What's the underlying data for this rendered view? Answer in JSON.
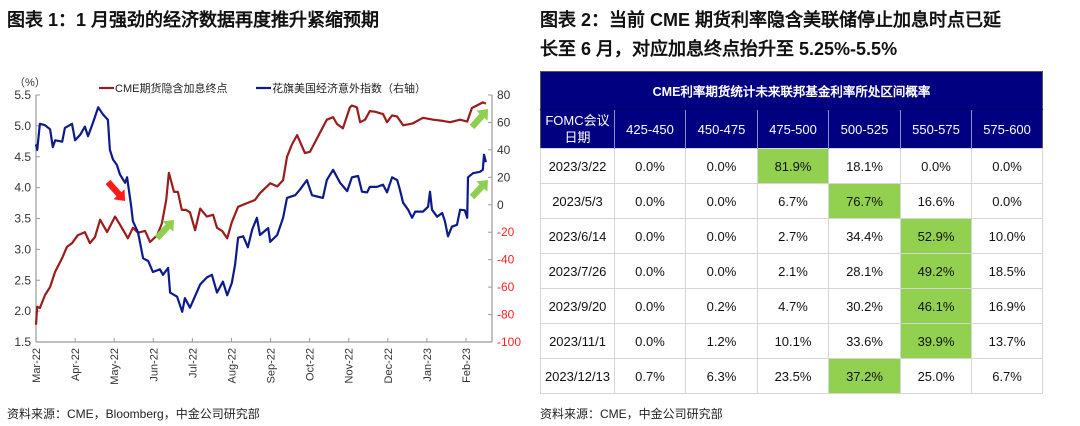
{
  "left_panel": {
    "title": "图表 1：1 月强劲的经济数据再度推升紧缩预期",
    "source": "资料来源：CME，Bloomberg，中金公司研究部"
  },
  "right_panel": {
    "title_line1": "图表 2：当前 CME 期货利率隐含美联储停止加息时点已延",
    "title_line2": "长至 6 月，对应加息终点抬升至 5.25%-5.5%",
    "source": "资料来源：CME，中金公司研究部",
    "table": {
      "title": "CME利率期货统计未来联邦基金利率所处区间概率",
      "header_first": [
        "FOMC会议",
        "日期"
      ],
      "columns": [
        "425-450",
        "450-475",
        "475-500",
        "500-525",
        "550-575",
        "575-600"
      ],
      "rows": [
        {
          "date": "2023/3/22",
          "values": [
            "0.0%",
            "0.0%",
            "81.9%",
            "18.1%",
            "0.0%",
            "0.0%"
          ],
          "highlight": 2
        },
        {
          "date": "2023/5/3",
          "values": [
            "0.0%",
            "0.0%",
            "6.7%",
            "76.7%",
            "16.6%",
            "0.0%"
          ],
          "highlight": 3
        },
        {
          "date": "2023/6/14",
          "values": [
            "0.0%",
            "0.0%",
            "2.7%",
            "34.4%",
            "52.9%",
            "10.0%"
          ],
          "highlight": 4
        },
        {
          "date": "2023/7/26",
          "values": [
            "0.0%",
            "0.0%",
            "2.1%",
            "28.1%",
            "49.2%",
            "18.5%"
          ],
          "highlight": 4
        },
        {
          "date": "2023/9/20",
          "values": [
            "0.0%",
            "0.2%",
            "4.7%",
            "30.2%",
            "46.1%",
            "16.9%"
          ],
          "highlight": 4
        },
        {
          "date": "2023/11/1",
          "values": [
            "0.0%",
            "1.2%",
            "10.1%",
            "33.6%",
            "39.9%",
            "13.7%"
          ],
          "highlight": 4
        },
        {
          "date": "2023/12/13",
          "values": [
            "0.7%",
            "6.3%",
            "23.5%",
            "37.2%",
            "25.0%",
            "6.7%"
          ],
          "highlight": 3
        }
      ]
    }
  },
  "colors": {
    "cme_line": "#9b1c1c",
    "citi_line": "#0c1a8a",
    "axis": "#9a9a9a",
    "tick_label": "#333333",
    "negative_tick_label": "#ff2222",
    "arrow_down": "#ff1a1a",
    "arrow_up": "#8dd04f",
    "table_header": "#000080",
    "highlight": "#92d050"
  },
  "chart_data": {
    "type": "line",
    "title": "图表 1：1 月强劲的经济数据再度推升紧缩预期",
    "ylabel": "（%）",
    "xlabel": "",
    "x_ticks": [
      "Mar-22",
      "Apr-22",
      "May-22",
      "Jun-22",
      "Jul-22",
      "Aug-22",
      "Sep-22",
      "Oct-22",
      "Nov-22",
      "Dec-22",
      "Jan-23",
      "Feb-23"
    ],
    "xlim": [
      0,
      11.67
    ],
    "ylim": [
      1.5,
      5.5
    ],
    "y_ticks": [
      "1.5",
      "2.0",
      "2.5",
      "3.0",
      "3.5",
      "4.0",
      "4.5",
      "5.0",
      "5.5"
    ],
    "y2lim": [
      -100,
      80
    ],
    "y2_ticks": [
      "-100",
      "-80",
      "-60",
      "-40",
      "-20",
      "0",
      "20",
      "40",
      "60",
      "80"
    ],
    "legend_position": "top",
    "grid": false,
    "series": [
      {
        "name": "CME期货隐含加息终点",
        "axis": "left",
        "points": [
          [
            0,
            1.78
          ],
          [
            0.03,
            2.07
          ],
          [
            0.1,
            2.05
          ],
          [
            0.23,
            2.26
          ],
          [
            0.36,
            2.39
          ],
          [
            0.49,
            2.64
          ],
          [
            0.67,
            2.86
          ],
          [
            0.79,
            3.04
          ],
          [
            0.92,
            3.1
          ],
          [
            1.07,
            3.23
          ],
          [
            1.25,
            3.28
          ],
          [
            1.38,
            3.1
          ],
          [
            1.51,
            3.2
          ],
          [
            1.64,
            3.48
          ],
          [
            1.82,
            3.28
          ],
          [
            2.02,
            3.53
          ],
          [
            2.15,
            3.4
          ],
          [
            2.35,
            3.18
          ],
          [
            2.48,
            3.35
          ],
          [
            2.61,
            3.27
          ],
          [
            2.79,
            3.3
          ],
          [
            2.92,
            3.12
          ],
          [
            3.1,
            3.23
          ],
          [
            3.22,
            3.42
          ],
          [
            3.33,
            3.8
          ],
          [
            3.4,
            4.24
          ],
          [
            3.53,
            3.93
          ],
          [
            3.63,
            3.93
          ],
          [
            3.73,
            3.64
          ],
          [
            3.84,
            3.64
          ],
          [
            3.94,
            3.6
          ],
          [
            4.07,
            3.31
          ],
          [
            4.2,
            3.66
          ],
          [
            4.37,
            3.53
          ],
          [
            4.53,
            3.56
          ],
          [
            4.63,
            3.35
          ],
          [
            4.76,
            3.3
          ],
          [
            4.89,
            3.18
          ],
          [
            5.01,
            3.44
          ],
          [
            5.17,
            3.69
          ],
          [
            5.4,
            3.75
          ],
          [
            5.6,
            3.8
          ],
          [
            5.73,
            3.91
          ],
          [
            5.99,
            4.07
          ],
          [
            6.17,
            4.02
          ],
          [
            6.32,
            4.12
          ],
          [
            6.42,
            4.5
          ],
          [
            6.55,
            4.7
          ],
          [
            6.68,
            4.85
          ],
          [
            6.88,
            4.56
          ],
          [
            7.01,
            4.58
          ],
          [
            7.19,
            4.8
          ],
          [
            7.44,
            5.1
          ],
          [
            7.6,
            5.14
          ],
          [
            7.7,
            5.03
          ],
          [
            7.85,
            4.96
          ],
          [
            8.03,
            5.3
          ],
          [
            8.08,
            5.33
          ],
          [
            8.21,
            5.3
          ],
          [
            8.29,
            5.06
          ],
          [
            8.42,
            5.1
          ],
          [
            8.54,
            5.24
          ],
          [
            8.67,
            5.23
          ],
          [
            8.88,
            5.19
          ],
          [
            8.98,
            5.06
          ],
          [
            9.11,
            5.17
          ],
          [
            9.24,
            5.15
          ],
          [
            9.39,
            5.01
          ],
          [
            9.64,
            5.04
          ],
          [
            9.9,
            5.13
          ],
          [
            10.16,
            5.1
          ],
          [
            10.41,
            5.08
          ],
          [
            10.59,
            5.06
          ],
          [
            10.85,
            5.1
          ],
          [
            11.03,
            5.07
          ],
          [
            11.15,
            5.29
          ],
          [
            11.31,
            5.34
          ],
          [
            11.43,
            5.38
          ],
          [
            11.51,
            5.36
          ]
        ]
      },
      {
        "name": "花旗美国经济意外指数（右轴）",
        "axis": "right",
        "points": [
          [
            0,
            44
          ],
          [
            0.03,
            40
          ],
          [
            0.1,
            59
          ],
          [
            0.23,
            58
          ],
          [
            0.36,
            55
          ],
          [
            0.43,
            42
          ],
          [
            0.49,
            47
          ],
          [
            0.67,
            46
          ],
          [
            0.74,
            56
          ],
          [
            0.92,
            59
          ],
          [
            1.0,
            47
          ],
          [
            1.13,
            51
          ],
          [
            1.25,
            57
          ],
          [
            1.33,
            50
          ],
          [
            1.46,
            60
          ],
          [
            1.59,
            71
          ],
          [
            1.71,
            66
          ],
          [
            1.84,
            62
          ],
          [
            1.89,
            40
          ],
          [
            1.97,
            33
          ],
          [
            2.07,
            29
          ],
          [
            2.15,
            22
          ],
          [
            2.28,
            16
          ],
          [
            2.33,
            20
          ],
          [
            2.4,
            6
          ],
          [
            2.43,
            0
          ],
          [
            2.48,
            -12
          ],
          [
            2.61,
            -20
          ],
          [
            2.74,
            -39
          ],
          [
            2.87,
            -41
          ],
          [
            2.99,
            -49
          ],
          [
            3.17,
            -47
          ],
          [
            3.25,
            -51
          ],
          [
            3.38,
            -46
          ],
          [
            3.43,
            -64
          ],
          [
            3.61,
            -67
          ],
          [
            3.74,
            -78
          ],
          [
            3.81,
            -68
          ],
          [
            3.94,
            -75
          ],
          [
            4.2,
            -58
          ],
          [
            4.37,
            -53
          ],
          [
            4.5,
            -51
          ],
          [
            4.63,
            -64
          ],
          [
            4.78,
            -56
          ],
          [
            4.89,
            -66
          ],
          [
            5.01,
            -57
          ],
          [
            5.09,
            -44
          ],
          [
            5.17,
            -24
          ],
          [
            5.3,
            -23
          ],
          [
            5.42,
            -31
          ],
          [
            5.53,
            -18
          ],
          [
            5.65,
            -9.5
          ],
          [
            5.73,
            -22
          ],
          [
            5.94,
            -17
          ],
          [
            5.99,
            -27
          ],
          [
            6.17,
            -22
          ],
          [
            6.32,
            -9.5
          ],
          [
            6.42,
            5
          ],
          [
            6.63,
            7
          ],
          [
            6.75,
            11
          ],
          [
            6.93,
            18
          ],
          [
            7.06,
            7
          ],
          [
            7.19,
            6
          ],
          [
            7.34,
            5
          ],
          [
            7.44,
            18
          ],
          [
            7.6,
            25.5
          ],
          [
            7.78,
            16
          ],
          [
            7.96,
            10
          ],
          [
            8.08,
            20
          ],
          [
            8.24,
            21
          ],
          [
            8.34,
            9.5
          ],
          [
            8.47,
            9
          ],
          [
            8.54,
            13
          ],
          [
            8.72,
            13
          ],
          [
            8.88,
            14.6
          ],
          [
            8.98,
            9
          ],
          [
            9.11,
            20
          ],
          [
            9.24,
            18
          ],
          [
            9.31,
            11
          ],
          [
            9.39,
            1.5
          ],
          [
            9.52,
            -3.6
          ],
          [
            9.62,
            -9.5
          ],
          [
            9.7,
            -5
          ],
          [
            9.9,
            -5
          ],
          [
            10.03,
            -1.4
          ],
          [
            10.08,
            9.5
          ],
          [
            10.13,
            -3.6
          ],
          [
            10.26,
            -8.7
          ],
          [
            10.39,
            -6
          ],
          [
            10.46,
            -12
          ],
          [
            10.54,
            -23
          ],
          [
            10.64,
            -16
          ],
          [
            10.77,
            -14.6
          ],
          [
            10.85,
            -3.6
          ],
          [
            10.97,
            -4
          ],
          [
            11.03,
            -9.5
          ],
          [
            11.05,
            20
          ],
          [
            11.18,
            23
          ],
          [
            11.36,
            24
          ],
          [
            11.43,
            25.5
          ],
          [
            11.46,
            36.5
          ],
          [
            11.51,
            31
          ]
        ]
      }
    ],
    "annotations": [
      {
        "type": "arrow",
        "direction": "down-right",
        "color_key": "arrow_down"
      },
      {
        "type": "arrow",
        "direction": "up-right",
        "color_key": "arrow_up"
      },
      {
        "type": "arrow",
        "direction": "up-right",
        "color_key": "arrow_up"
      },
      {
        "type": "arrow",
        "direction": "up-right",
        "color_key": "arrow_up"
      }
    ]
  }
}
